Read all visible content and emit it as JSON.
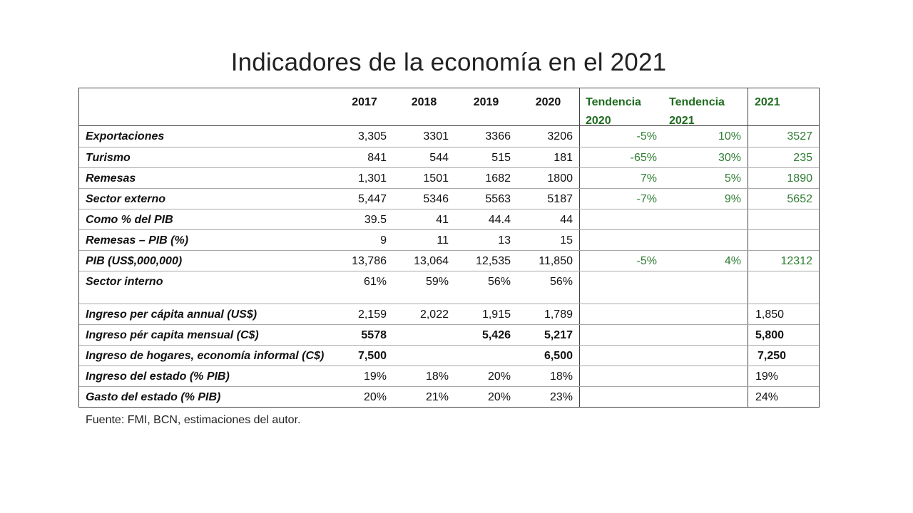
{
  "title": "Indicadores de la economía en el 2021",
  "headers": {
    "y2017": "2017",
    "y2018": "2018",
    "y2019": "2019",
    "y2020": "2020",
    "tend2020": "Tendencia 2020",
    "tend2021": "Tendencia 2021",
    "y2021": "2021"
  },
  "rows": [
    {
      "label": "Exportaciones",
      "v2017": "3,305",
      "v2018": "3301",
      "v2019": "3366",
      "v2020": "3206",
      "t2020": "-5%",
      "t2021": "10%",
      "v2021": "3527"
    },
    {
      "label": "Turismo",
      "v2017": "841",
      "v2018": "544",
      "v2019": "515",
      "v2020": "181",
      "t2020": "-65%",
      "t2021": "30%",
      "v2021": "235"
    },
    {
      "label": "Remesas",
      "v2017": "1,301",
      "v2018": "1501",
      "v2019": "1682",
      "v2020": "1800",
      "t2020": "7%",
      "t2021": "5%",
      "v2021": "1890"
    },
    {
      "label": "Sector externo",
      "v2017": "5,447",
      "v2018": "5346",
      "v2019": "5563",
      "v2020": "5187",
      "t2020": "-7%",
      "t2021": "9%",
      "v2021": "5652"
    },
    {
      "label": "Como % del PIB",
      "v2017": "39.5",
      "v2018": "41",
      "v2019": "44.4",
      "v2020": "44",
      "t2020": "",
      "t2021": "",
      "v2021": ""
    },
    {
      "label": "Remesas – PIB (%)",
      "v2017": "9",
      "v2018": "11",
      "v2019": "13",
      "v2020": "15",
      "t2020": "",
      "t2021": "",
      "v2021": ""
    },
    {
      "label": "PIB (US$,000,000)",
      "v2017": "13,786",
      "v2018": "13,064",
      "v2019": "12,535",
      "v2020": "11,850",
      "t2020": "-5%",
      "t2021": "4%",
      "v2021": "12312"
    },
    {
      "label": "Sector interno",
      "v2017": "61%",
      "v2018": "59%",
      "v2019": "56%",
      "v2020": "56%",
      "t2020": "",
      "t2021": "",
      "v2021": ""
    },
    {
      "label": "Ingreso per cápita annual (US$)",
      "v2017": "2,159",
      "v2018": "2,022",
      "v2019": "1,915",
      "v2020": "1,789",
      "t2020": "",
      "t2021": "",
      "v2021": "1,850"
    },
    {
      "label": "Ingreso pér capita mensual (C$)",
      "v2017": "5578",
      "v2018": "",
      "v2019": "5,426",
      "v2020": "5,217",
      "t2020": "",
      "t2021": "",
      "v2021": "5,800"
    },
    {
      "label": "Ingreso de hogares, economía informal (C$)",
      "v2017": "7,500",
      "v2018": "",
      "v2019": "",
      "v2020": "6,500",
      "t2020": "",
      "t2021": "",
      "v2021": "7,250"
    },
    {
      "label": "Ingreso del estado (% PIB)",
      "v2017": "19%",
      "v2018": "18%",
      "v2019": "20%",
      "v2020": "18%",
      "t2020": "",
      "t2021": "",
      "v2021": "19%"
    },
    {
      "label": "Gasto del estado (% PIB)",
      "v2017": "20%",
      "v2018": "21%",
      "v2019": "20%",
      "v2020": "23%",
      "t2020": "",
      "t2021": "",
      "v2021": "24%"
    }
  ],
  "source": "Fuente: FMI, BCN, estimaciones del autor."
}
